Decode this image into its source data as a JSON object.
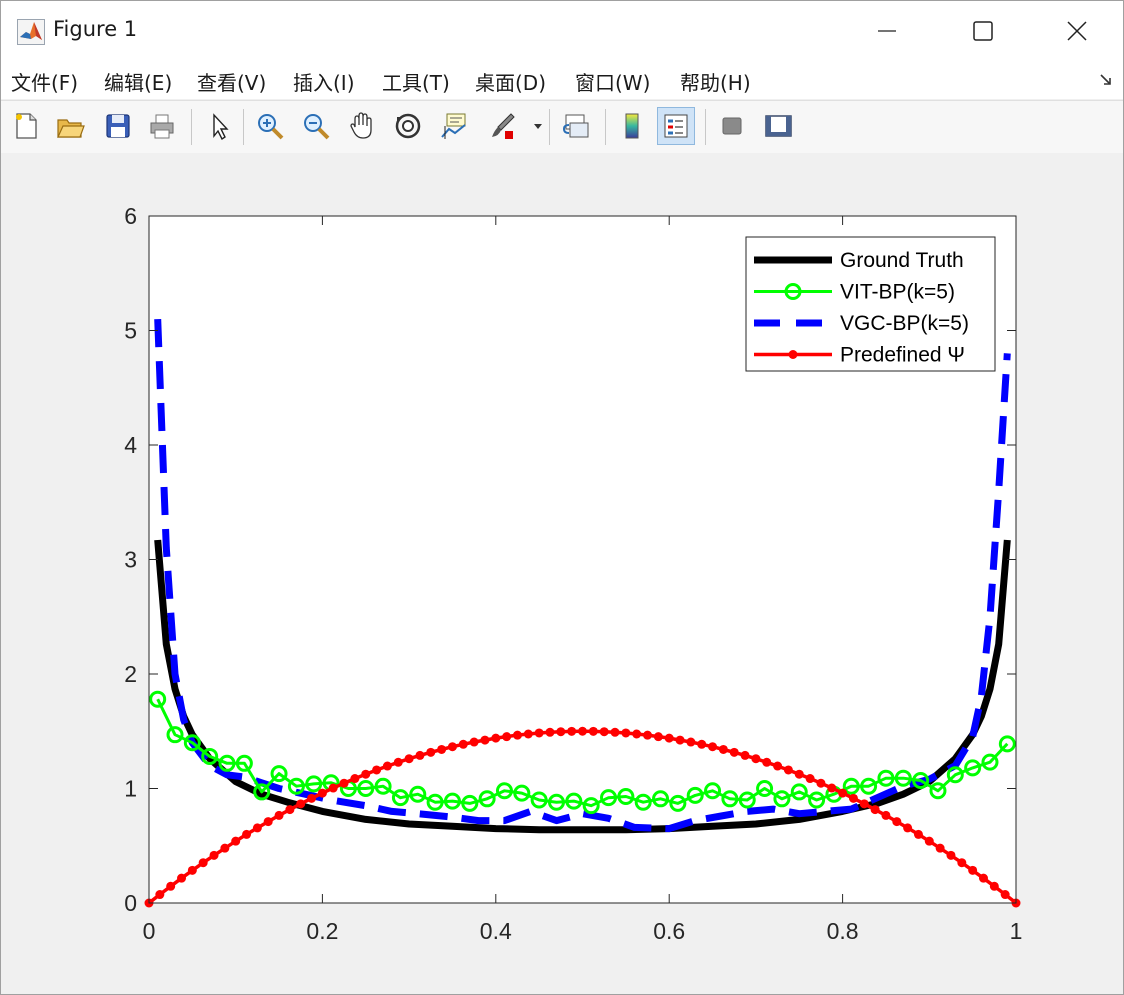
{
  "window": {
    "title": "Figure 1"
  },
  "menu": {
    "items": [
      {
        "label": "文件(F)",
        "mnemonic": "F"
      },
      {
        "label": "编辑(E)",
        "mnemonic": "E"
      },
      {
        "label": "查看(V)",
        "mnemonic": "V"
      },
      {
        "label": "插入(I)",
        "mnemonic": "I"
      },
      {
        "label": "工具(T)",
        "mnemonic": "T"
      },
      {
        "label": "桌面(D)",
        "mnemonic": "D"
      },
      {
        "label": "窗口(W)",
        "mnemonic": "W"
      },
      {
        "label": "帮助(H)",
        "mnemonic": "H"
      }
    ]
  },
  "toolbar": {
    "tools": [
      "new-figure-icon",
      "open-file-icon",
      "save-icon",
      "print-icon",
      "select-arrow-icon",
      "zoom-in-icon",
      "zoom-out-icon",
      "pan-hand-icon",
      "rotate-3d-icon",
      "data-cursor-icon",
      "brush-icon",
      "link-plot-icon",
      "colorbar-icon",
      "legend-icon",
      "hide-plot-tools-icon",
      "show-plot-tools-icon"
    ],
    "active_tool": "legend-icon"
  },
  "colors": {
    "ground_truth": "#000000",
    "vit_bp": "#00ff00",
    "vgc_bp": "#0000ff",
    "predefined": "#ff0000",
    "axes_bg": "#ffffff",
    "figure_bg": "#f0f0f0"
  },
  "chart_data": {
    "type": "line",
    "title": "",
    "xlabel": "",
    "ylabel": "",
    "xlim": [
      0,
      1
    ],
    "ylim": [
      0,
      6
    ],
    "xticks": [
      0,
      0.2,
      0.4,
      0.6,
      0.8,
      1
    ],
    "xtick_labels": [
      "0",
      "0.2",
      "0.4",
      "0.6",
      "0.8",
      "1"
    ],
    "yticks": [
      0,
      1,
      2,
      3,
      4,
      5,
      6
    ],
    "ytick_labels": [
      "0",
      "1",
      "2",
      "3",
      "4",
      "5",
      "6"
    ],
    "grid": false,
    "legend_position": "top-right",
    "series": [
      {
        "name": "Ground Truth",
        "style": "solid-thick",
        "x": [
          0.01,
          0.02,
          0.03,
          0.04,
          0.05,
          0.07,
          0.1,
          0.13,
          0.16,
          0.2,
          0.25,
          0.3,
          0.35,
          0.4,
          0.45,
          0.5,
          0.55,
          0.6,
          0.65,
          0.7,
          0.75,
          0.8,
          0.84,
          0.87,
          0.9,
          0.93,
          0.95,
          0.96,
          0.97,
          0.98,
          0.99
        ],
        "y": [
          3.17,
          2.26,
          1.87,
          1.63,
          1.47,
          1.26,
          1.06,
          0.95,
          0.88,
          0.8,
          0.73,
          0.69,
          0.67,
          0.65,
          0.64,
          0.64,
          0.64,
          0.65,
          0.67,
          0.69,
          0.73,
          0.8,
          0.87,
          0.95,
          1.06,
          1.26,
          1.47,
          1.63,
          1.87,
          2.26,
          3.17
        ]
      },
      {
        "name": "VIT-BP(k=5)",
        "style": "solid-circle-markers",
        "x": [
          0.01,
          0.03,
          0.05,
          0.07,
          0.09,
          0.11,
          0.13,
          0.15,
          0.17,
          0.19,
          0.21,
          0.23,
          0.25,
          0.27,
          0.29,
          0.31,
          0.33,
          0.35,
          0.37,
          0.39,
          0.41,
          0.43,
          0.45,
          0.47,
          0.49,
          0.51,
          0.53,
          0.55,
          0.57,
          0.59,
          0.61,
          0.63,
          0.65,
          0.67,
          0.69,
          0.71,
          0.73,
          0.75,
          0.77,
          0.79,
          0.81,
          0.83,
          0.85,
          0.87,
          0.89,
          0.91,
          0.93,
          0.95,
          0.97,
          0.99
        ],
        "y": [
          1.78,
          1.47,
          1.4,
          1.28,
          1.22,
          1.22,
          0.97,
          1.13,
          1.02,
          1.04,
          1.05,
          1.0,
          1.0,
          1.02,
          0.92,
          0.95,
          0.88,
          0.89,
          0.87,
          0.91,
          0.98,
          0.96,
          0.9,
          0.88,
          0.89,
          0.85,
          0.92,
          0.93,
          0.88,
          0.91,
          0.87,
          0.94,
          0.98,
          0.91,
          0.9,
          1.0,
          0.91,
          0.97,
          0.9,
          0.95,
          1.02,
          1.02,
          1.09,
          1.09,
          1.07,
          0.98,
          1.12,
          1.18,
          1.23,
          1.39
        ]
      },
      {
        "name": "VGC-BP(k=5)",
        "style": "dashed-thick",
        "x": [
          0.01,
          0.02,
          0.03,
          0.04,
          0.05,
          0.07,
          0.09,
          0.11,
          0.13,
          0.15,
          0.18,
          0.21,
          0.25,
          0.28,
          0.31,
          0.35,
          0.38,
          0.41,
          0.44,
          0.47,
          0.5,
          0.53,
          0.56,
          0.6,
          0.63,
          0.66,
          0.69,
          0.72,
          0.75,
          0.78,
          0.81,
          0.84,
          0.87,
          0.9,
          0.93,
          0.95,
          0.96,
          0.97,
          0.98,
          0.99
        ],
        "y": [
          5.1,
          3.1,
          2.0,
          1.6,
          1.4,
          1.2,
          1.12,
          1.1,
          1.05,
          1.0,
          0.95,
          0.9,
          0.85,
          0.8,
          0.78,
          0.75,
          0.72,
          0.72,
          0.8,
          0.72,
          0.78,
          0.74,
          0.66,
          0.65,
          0.72,
          0.76,
          0.8,
          0.82,
          0.78,
          0.8,
          0.82,
          0.92,
          1.02,
          1.08,
          1.2,
          1.45,
          1.8,
          2.5,
          3.6,
          4.8
        ]
      },
      {
        "name": "Predefined Ψ",
        "style": "solid-dot-markers",
        "x": [
          0,
          0.0125,
          0.025,
          0.0375,
          0.05,
          0.0625,
          0.075,
          0.0875,
          0.1,
          0.1125,
          0.125,
          0.1375,
          0.15,
          0.1625,
          0.175,
          0.1875,
          0.2,
          0.2125,
          0.225,
          0.2375,
          0.25,
          0.2625,
          0.275,
          0.2875,
          0.3,
          0.3125,
          0.325,
          0.3375,
          0.35,
          0.3625,
          0.375,
          0.3875,
          0.4,
          0.4125,
          0.425,
          0.4375,
          0.45,
          0.4625,
          0.475,
          0.4875,
          0.5,
          0.5125,
          0.525,
          0.5375,
          0.55,
          0.5625,
          0.575,
          0.5875,
          0.6,
          0.6125,
          0.625,
          0.6375,
          0.65,
          0.6625,
          0.675,
          0.6875,
          0.7,
          0.7125,
          0.725,
          0.7375,
          0.75,
          0.7625,
          0.775,
          0.7875,
          0.8,
          0.8125,
          0.825,
          0.8375,
          0.85,
          0.8625,
          0.875,
          0.8875,
          0.9,
          0.9125,
          0.925,
          0.9375,
          0.95,
          0.9625,
          0.975,
          0.9875,
          1
        ],
        "y": [
          0,
          0.074,
          0.146,
          0.217,
          0.285,
          0.352,
          0.416,
          0.479,
          0.54,
          0.599,
          0.656,
          0.711,
          0.765,
          0.816,
          0.866,
          0.914,
          0.96,
          1.004,
          1.046,
          1.087,
          1.125,
          1.162,
          1.196,
          1.229,
          1.26,
          1.289,
          1.316,
          1.341,
          1.365,
          1.386,
          1.406,
          1.423,
          1.44,
          1.453,
          1.466,
          1.476,
          1.485,
          1.491,
          1.496,
          1.499,
          1.5,
          1.499,
          1.496,
          1.491,
          1.485,
          1.476,
          1.466,
          1.453,
          1.44,
          1.423,
          1.406,
          1.386,
          1.365,
          1.341,
          1.316,
          1.289,
          1.26,
          1.229,
          1.196,
          1.162,
          1.125,
          1.087,
          1.046,
          1.004,
          0.96,
          0.914,
          0.866,
          0.816,
          0.765,
          0.711,
          0.656,
          0.599,
          0.54,
          0.479,
          0.416,
          0.352,
          0.285,
          0.217,
          0.146,
          0.074,
          0
        ]
      }
    ]
  }
}
